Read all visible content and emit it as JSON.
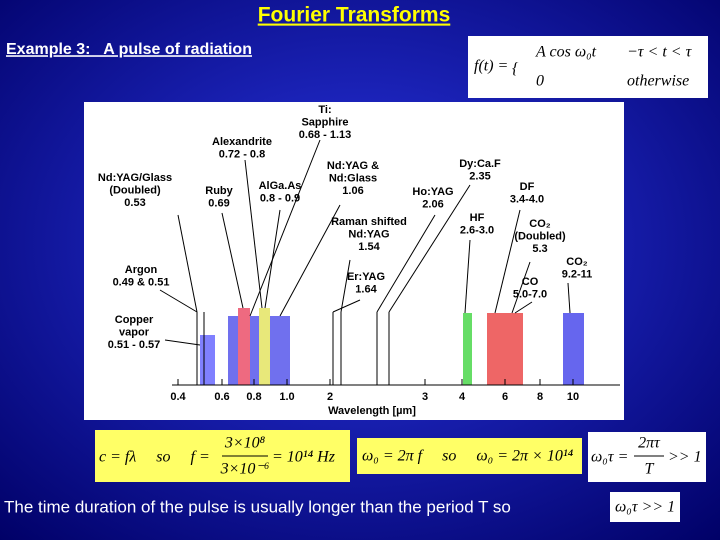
{
  "title": "Fourier Transforms",
  "subtitle": "Example 3:   A pulse of radiation",
  "piecewise": {
    "lhs": "f(t) =",
    "cases": [
      [
        "A cos ω₀t",
        "−τ < t < τ"
      ],
      [
        "0",
        "otherwise"
      ]
    ]
  },
  "figure": {
    "labels": [
      {
        "lines": [
          "Ti:",
          "Sapphire",
          "0.68 - 1.13"
        ]
      },
      {
        "lines": [
          "Alexandrite",
          "0.72 - 0.8"
        ]
      },
      {
        "lines": [
          "Nd:YAG/Glass",
          "(Doubled)",
          "0.53"
        ]
      },
      {
        "lines": [
          "Ruby",
          "0.69"
        ]
      },
      {
        "lines": [
          "AlGa.As",
          "0.8 - 0.9"
        ]
      },
      {
        "lines": [
          "Nd:YAG &",
          "Nd:Glass",
          "1.06"
        ]
      },
      {
        "lines": [
          "Dy:Ca.F",
          "2.35"
        ]
      },
      {
        "lines": [
          "Ho:YAG",
          "2.06"
        ]
      },
      {
        "lines": [
          "DF",
          "3.4-4.0"
        ]
      },
      {
        "lines": [
          "HF",
          "2.6-3.0"
        ]
      },
      {
        "lines": [
          "Raman shifted",
          "Nd:YAG",
          "1.54"
        ]
      },
      {
        "lines": [
          "CO₂",
          "(Doubled)",
          "5.3"
        ]
      },
      {
        "lines": [
          "CO₂",
          "9.2-11"
        ]
      },
      {
        "lines": [
          "CO",
          "5.0-7.0"
        ]
      },
      {
        "lines": [
          "Er:YAG",
          "1.64"
        ]
      },
      {
        "lines": [
          "Argon",
          "0.49 & 0.51"
        ]
      },
      {
        "lines": [
          "Copper",
          "vapor",
          "0.51 - 0.57"
        ]
      }
    ],
    "x_ticks": [
      "0.4",
      "0.6",
      "0.8",
      "1.0",
      "2",
      "3",
      "4",
      "6",
      "8",
      "10"
    ],
    "x_axis_label": "Wavelength [µm]"
  },
  "equations": {
    "frequency": {
      "left": "c = fλ     so     f =",
      "numerator": "3×10⁸",
      "denominator": "3×10⁻⁶",
      "right": "= 10¹⁴ Hz"
    },
    "angular": "ω₀ = 2π f     so     ω₀ = 2π × 10¹⁴",
    "condition": {
      "left": "ω₀τ =",
      "numerator": "2πτ",
      "denominator": "T",
      "right": ">> 1"
    }
  },
  "footer": {
    "text": "The time duration of the pulse is usually longer than the period T so",
    "condition": "ω₀τ >> 1"
  }
}
